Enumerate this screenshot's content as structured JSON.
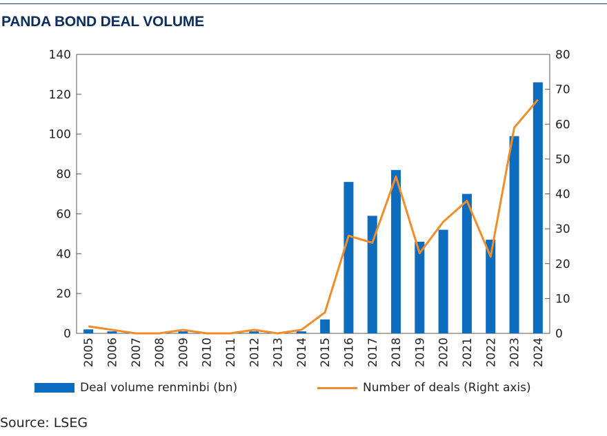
{
  "chart_data": {
    "type": "bar",
    "title": "PANDA BOND DEAL VOLUME",
    "categories": [
      "2005",
      "2006",
      "2007",
      "2008",
      "2009",
      "2010",
      "2011",
      "2012",
      "2013",
      "2014",
      "2015",
      "2016",
      "2017",
      "2018",
      "2019",
      "2020",
      "2021",
      "2022",
      "2023",
      "2024"
    ],
    "series": [
      {
        "name": "Deal volume renminbi (bn)",
        "type": "bar",
        "axis": "left",
        "color": "#0e6cbf",
        "values": [
          2,
          1,
          0,
          0,
          1,
          0,
          0,
          1,
          0,
          1,
          7,
          76,
          59,
          82,
          46,
          52,
          70,
          47,
          99,
          126
        ]
      },
      {
        "name": "Number of deals (Right axis)",
        "type": "line",
        "axis": "right",
        "color": "#f28c28",
        "values": [
          2,
          1,
          0,
          0,
          1,
          0,
          0,
          1,
          0,
          1,
          6,
          28,
          26,
          45,
          23,
          32,
          38,
          22,
          59,
          67
        ]
      }
    ],
    "y_left": {
      "range": [
        0,
        140
      ],
      "ticks": [
        0,
        20,
        40,
        60,
        80,
        100,
        120,
        140
      ]
    },
    "y_right": {
      "range": [
        0,
        80
      ],
      "ticks": [
        0,
        10,
        20,
        30,
        40,
        50,
        60,
        70,
        80
      ]
    },
    "legend_position": "bottom"
  },
  "legend": {
    "bar_label": "Deal volume renminbi (bn)",
    "line_label": "Number of deals (Right axis)"
  },
  "source": "Source: LSEG"
}
